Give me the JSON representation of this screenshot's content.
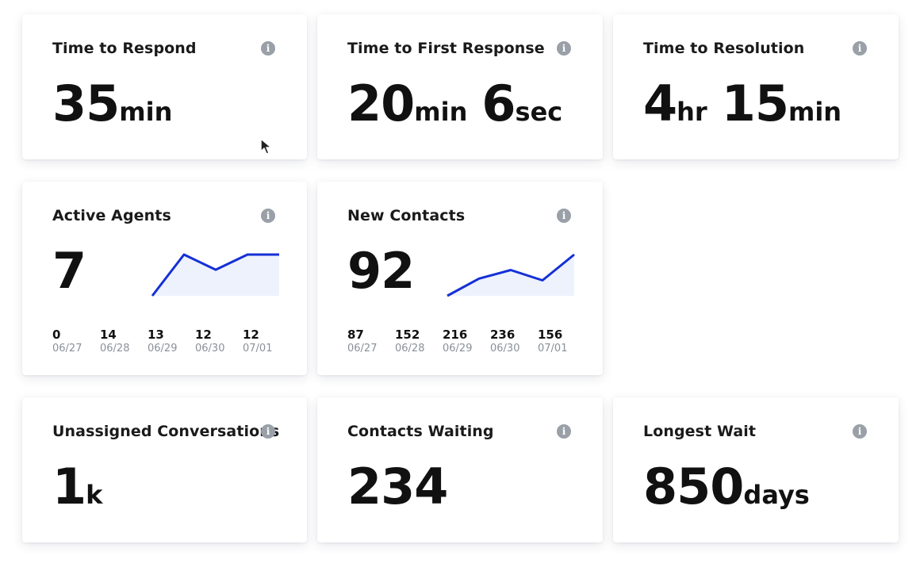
{
  "cards": {
    "time_to_respond": {
      "title": "Time to Respond",
      "value": [
        {
          "num": "35",
          "unit": "min"
        }
      ]
    },
    "time_to_first_response": {
      "title": "Time to First Response",
      "value": [
        {
          "num": "20",
          "unit": "min"
        },
        {
          "num": "6",
          "unit": "sec"
        }
      ]
    },
    "time_to_resolution": {
      "title": "Time to Resolution",
      "value": [
        {
          "num": "4",
          "unit": "hr"
        },
        {
          "num": "15",
          "unit": "min"
        }
      ]
    },
    "active_agents": {
      "title": "Active Agents",
      "value": "7"
    },
    "new_contacts": {
      "title": "New Contacts",
      "value": "92"
    },
    "unassigned_conversations": {
      "title": "Unassigned Conversations",
      "value": [
        {
          "num": "1",
          "unit": "k"
        }
      ]
    },
    "contacts_waiting": {
      "title": "Contacts Waiting",
      "value": "234"
    },
    "longest_wait": {
      "title": "Longest Wait",
      "value": [
        {
          "num": "850",
          "unit": "days"
        }
      ]
    }
  },
  "icons": {
    "info": "info-icon",
    "cursor": "cursor-arrow-icon"
  },
  "colors": {
    "line": "#1530d6",
    "area": "#eef2fd",
    "info_icon": "#9aa0a8",
    "date_text": "#8a9099"
  },
  "chart_data": [
    {
      "type": "area",
      "x": [
        "06/27",
        "06/28",
        "06/29",
        "06/30",
        "07/01"
      ],
      "series": [
        {
          "values": [
            0,
            14,
            13,
            12,
            12
          ]
        }
      ],
      "title": "",
      "xlabel": "",
      "ylabel": "",
      "ylim": [
        0,
        14
      ],
      "grid": false,
      "spark_values_shown": [
        6,
        15.5,
        12,
        15.5,
        15.5
      ]
    },
    {
      "type": "area",
      "x": [
        "06/27",
        "06/28",
        "06/29",
        "06/30",
        "07/01"
      ],
      "series": [
        {
          "values": [
            87,
            152,
            216,
            236,
            156
          ]
        }
      ],
      "title": "",
      "xlabel": "",
      "ylabel": "",
      "ylim": [
        0,
        236
      ],
      "grid": false,
      "spark_values_shown": [
        0,
        20,
        30,
        18,
        48
      ]
    }
  ]
}
